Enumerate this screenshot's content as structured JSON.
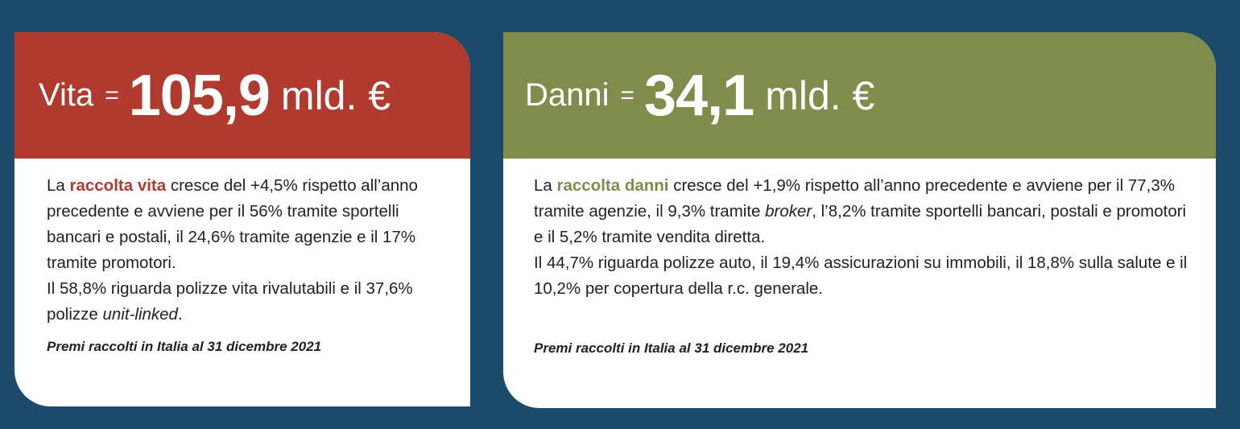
{
  "colors": {
    "background": "#1b4a6b",
    "vita": "#b03a2e",
    "danni": "#7f8c4b"
  },
  "vita": {
    "label": "Vita",
    "equals": "=",
    "value": "105,9",
    "unit": "mld. €",
    "p1_pre": "La ",
    "p1_hl": "raccolta vita",
    "p1_post": " cresce del +4,5% rispetto all’anno precedente e avviene per il 56% tramite sportelli bancari e postali, il 24,6% tramite agenzie e il 17% tramite promotori.",
    "p2_pre": "Il 58,8% riguarda polizze vita rivalutabili e il 37,6% polizze ",
    "p2_em": "unit-linked",
    "p2_post": ".",
    "note": "Premi raccolti in Italia al 31 dicembre 2021"
  },
  "danni": {
    "label": "Danni",
    "equals": "=",
    "value": "34,1",
    "unit": "mld. €",
    "p1_pre": "La ",
    "p1_hl": "raccolta danni",
    "p1_mid": " cresce del +1,9% rispetto all’anno precedente e avviene per il 77,3% tramite agenzie, il 9,3% tramite ",
    "p1_em": "broker",
    "p1_post": ", l’8,2% tramite sportelli bancari, postali e promotori e il 5,2% tramite vendita diretta.",
    "p2": "Il 44,7% riguarda polizze auto, il 19,4% assicurazioni su immobili, il 18,8% sulla salute e il 10,2% per copertura della r.c. generale.",
    "note": "Premi raccolti in Italia al 31 dicembre 2021"
  }
}
